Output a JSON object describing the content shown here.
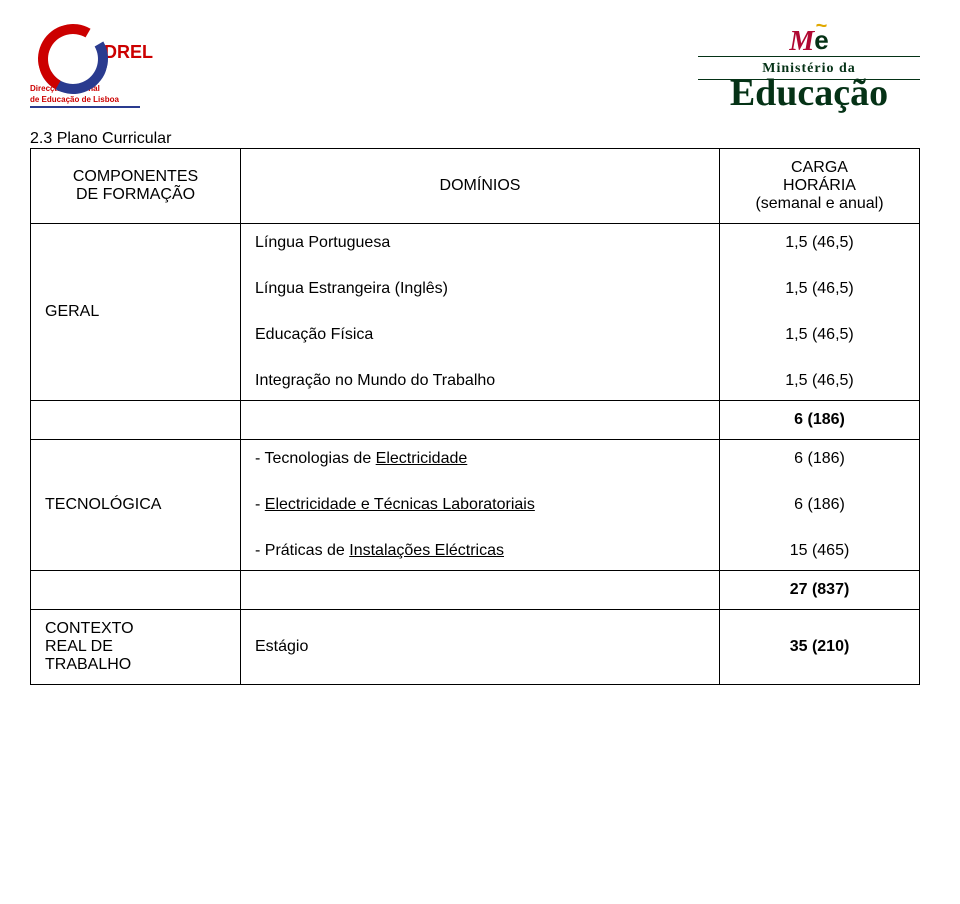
{
  "logo_left": {
    "acronym": "DREL",
    "line1": "Direcção Regional",
    "line2": "de Educação de Lisboa"
  },
  "logo_right": {
    "mon_m": "M",
    "mon_e": "e",
    "tilde": "~",
    "line_top": "Ministério da",
    "bottom": "Educação"
  },
  "section_title": "2.3 Plano Curricular",
  "table": {
    "header": {
      "col1a": "COMPONENTES",
      "col1b": "DE FORMAÇÃO",
      "col2": "DOMÍNIOS",
      "col3a": "CARGA",
      "col3b": "HORÁRIA",
      "col3c": "(semanal e anual)"
    },
    "geral": {
      "label": "GERAL",
      "subjects": {
        "s1": "Língua Portuguesa",
        "s2": "Língua Estrangeira (Inglês)",
        "s3": "Educação Física",
        "s4": "Integração no Mundo do Trabalho"
      },
      "values": {
        "v1": "1,5 (46,5)",
        "v2": "1,5 (46,5)",
        "v3": "1,5 (46,5)",
        "v4": "1,5 (46,5)"
      },
      "total": "6 (186)"
    },
    "tecno": {
      "label": "TECNOLÓGICA",
      "lines": {
        "l1_prefix": "- Tecnologias de ",
        "l1_uline": "Electricidade",
        "l2_prefix": "- ",
        "l2_uline": "Electricidade e Técnicas Laboratoriais",
        "l3_prefix": "- Práticas de ",
        "l3_uline": "Instalações Eléctricas"
      },
      "values": {
        "v1": "6 (186)",
        "v2": "6 (186)",
        "v3": "15 (465)"
      },
      "total": "27 (837)"
    },
    "contexto": {
      "label1": "CONTEXTO",
      "label2": "REAL DE",
      "label3": "TRABALHO",
      "subject": "Estágio",
      "value": "35 (210)"
    }
  }
}
